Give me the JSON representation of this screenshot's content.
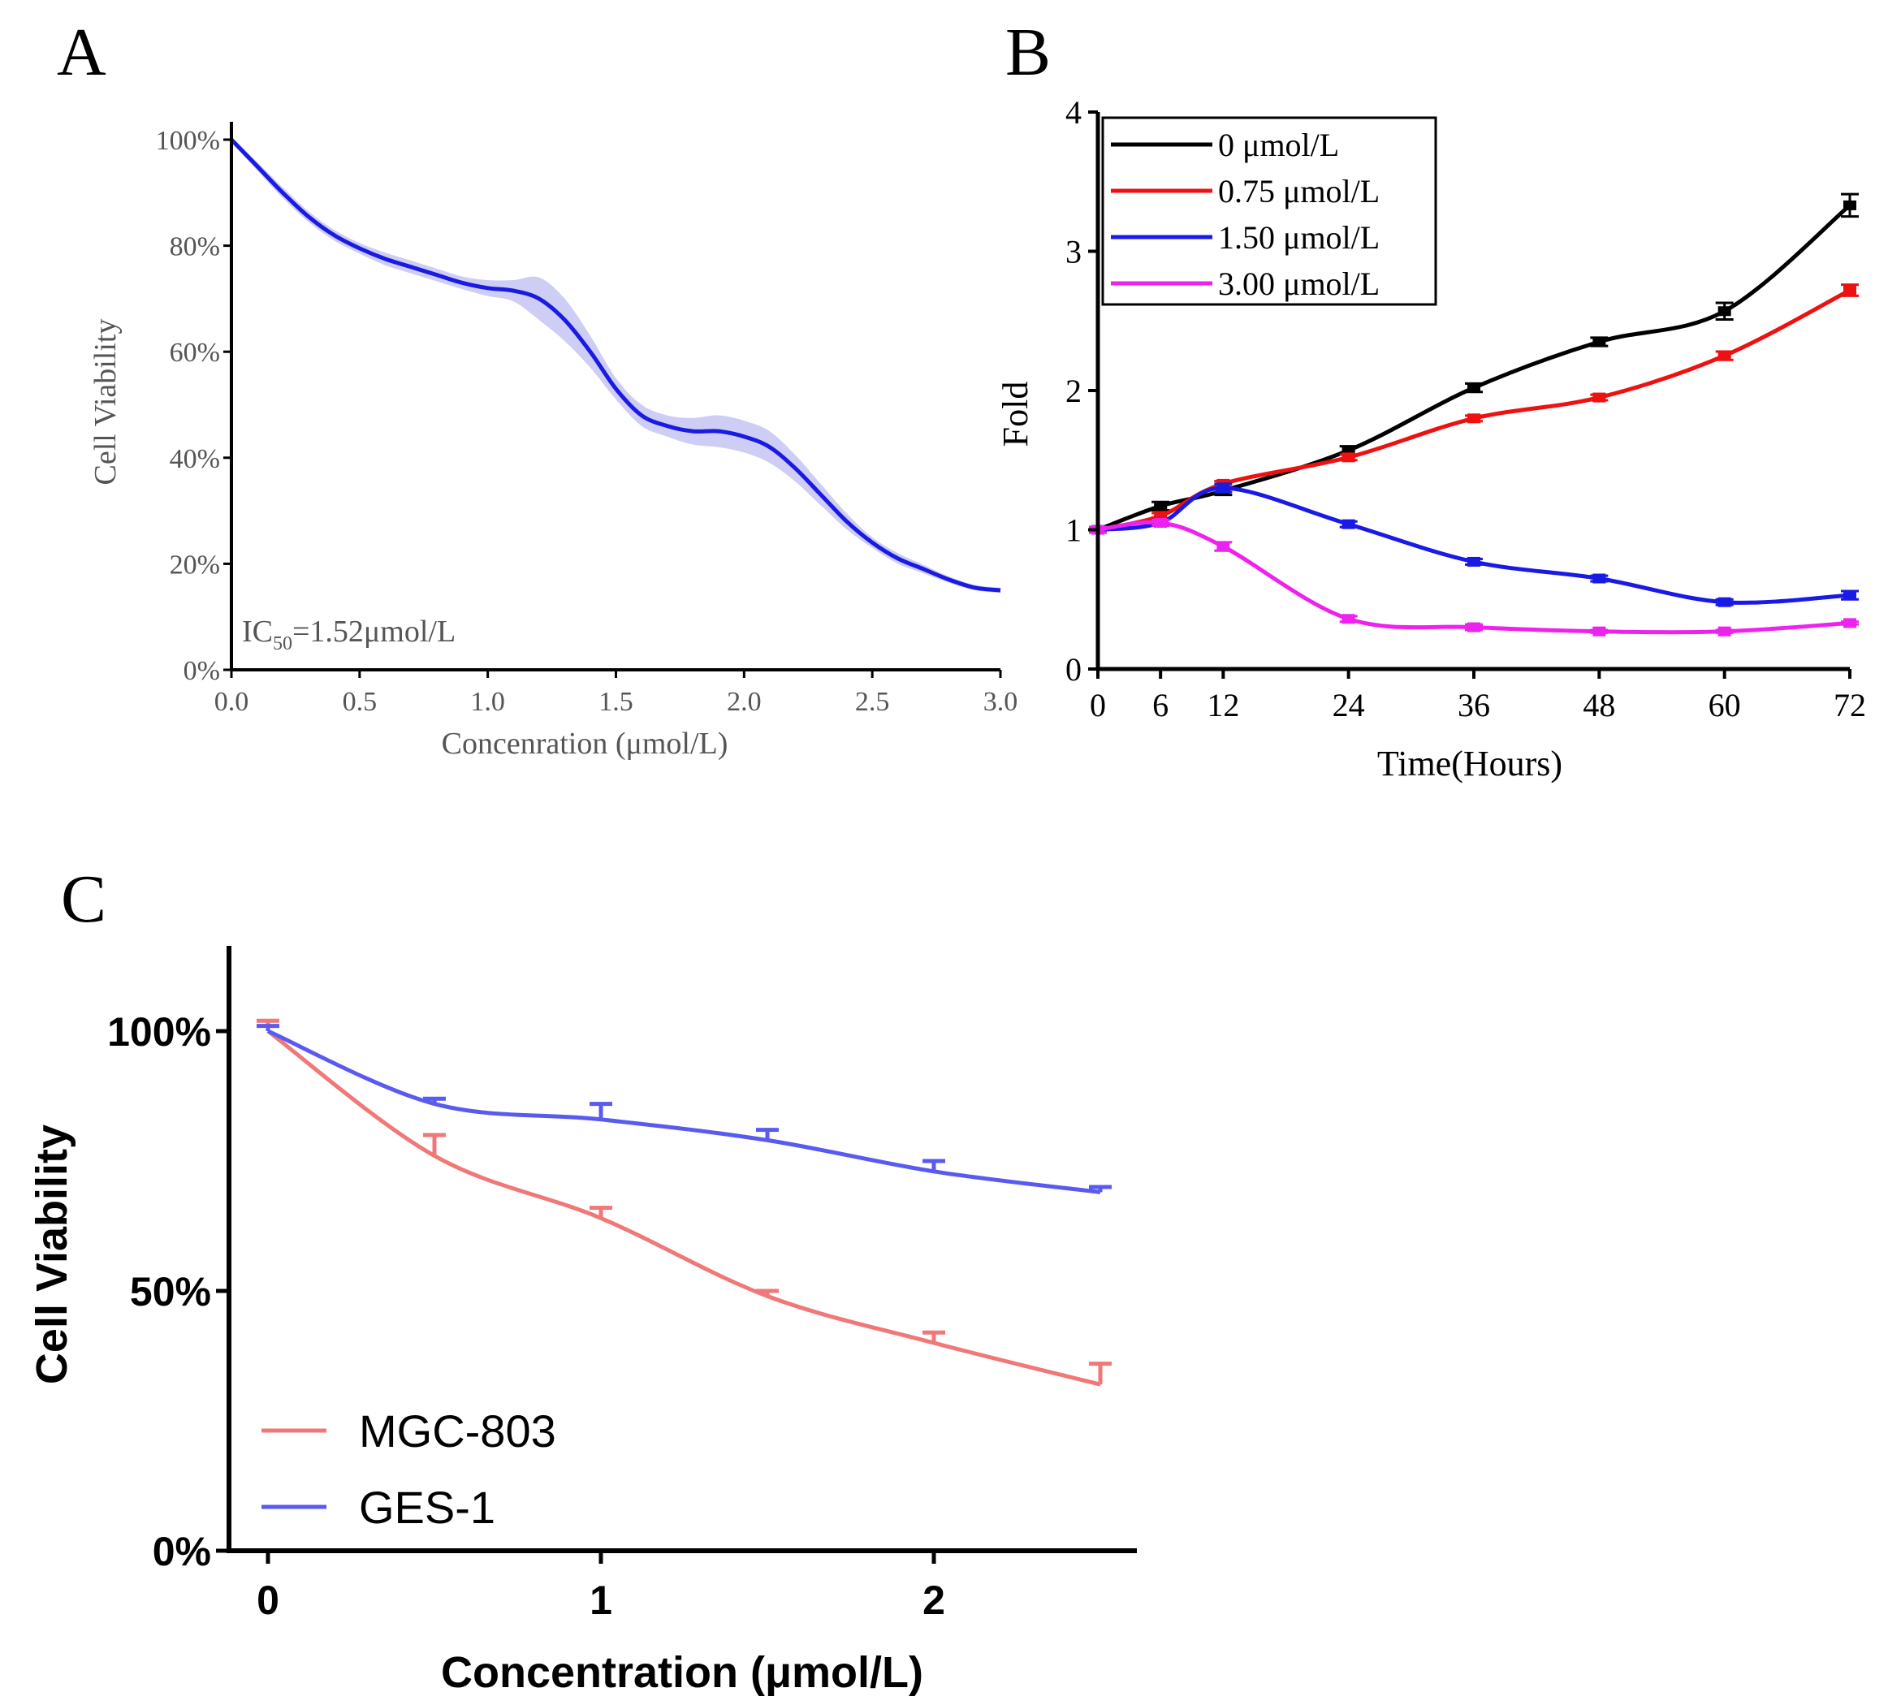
{
  "panels": {
    "a": {
      "letter": "A"
    },
    "b": {
      "letter": "B"
    },
    "c": {
      "letter": "C"
    }
  },
  "chart_data": [
    {
      "id": "A",
      "type": "line",
      "title": "",
      "xlabel": "Concenration (μmol/L)",
      "ylabel": "Cell Viability",
      "xlim": [
        0,
        3
      ],
      "ylim": [
        0,
        1.05
      ],
      "xticks": [
        0,
        0.5,
        1,
        1.5,
        2,
        2.5,
        3
      ],
      "xtick_labels": [
        "0.0",
        "0.5",
        "1.0",
        "1.5",
        "2.0",
        "2.5",
        "3.0"
      ],
      "yticks": [
        0,
        0.2,
        0.4,
        0.6,
        0.8,
        1.0
      ],
      "ytick_labels": [
        "0%",
        "20%",
        "40%",
        "60%",
        "80%",
        "100%"
      ],
      "annotation": {
        "prefix": "IC",
        "subscript": "50",
        "suffix": "=1.52μmol/L"
      },
      "colors": {
        "line": "#1a1ae0",
        "band": "#c8c8f4",
        "axis": "#000000"
      },
      "series": [
        {
          "name": "Cell viability",
          "x": [
            0,
            0.1,
            0.2,
            0.3,
            0.4,
            0.5,
            0.6,
            0.7,
            0.8,
            0.9,
            1.0,
            1.1,
            1.2,
            1.3,
            1.4,
            1.5,
            1.6,
            1.7,
            1.8,
            1.9,
            2.0,
            2.1,
            2.2,
            2.3,
            2.4,
            2.5,
            2.6,
            2.7,
            2.8,
            2.9,
            3.0
          ],
          "y": [
            1.0,
            0.95,
            0.9,
            0.855,
            0.82,
            0.795,
            0.775,
            0.76,
            0.745,
            0.73,
            0.72,
            0.715,
            0.7,
            0.66,
            0.6,
            0.53,
            0.48,
            0.46,
            0.45,
            0.45,
            0.44,
            0.42,
            0.38,
            0.33,
            0.28,
            0.24,
            0.21,
            0.19,
            0.17,
            0.155,
            0.15
          ],
          "band_half_width": [
            0.005,
            0.008,
            0.01,
            0.01,
            0.01,
            0.01,
            0.012,
            0.012,
            0.012,
            0.012,
            0.015,
            0.02,
            0.04,
            0.04,
            0.03,
            0.02,
            0.02,
            0.02,
            0.025,
            0.03,
            0.03,
            0.03,
            0.025,
            0.02,
            0.015,
            0.01,
            0.01,
            0.008,
            0.006,
            0.005,
            0.005
          ]
        }
      ]
    },
    {
      "id": "B",
      "type": "line",
      "title": "",
      "xlabel": "Time(Hours)",
      "ylabel": "Fold",
      "xlim": [
        0,
        72
      ],
      "ylim": [
        0,
        4
      ],
      "xticks": [
        0,
        6,
        12,
        24,
        36,
        48,
        60,
        72
      ],
      "yticks": [
        0,
        1,
        2,
        3,
        4
      ],
      "legend_position": "top-left",
      "series": [
        {
          "name": "0 μmol/L",
          "color": "#000000",
          "x": [
            0,
            6,
            12,
            24,
            36,
            48,
            60,
            72
          ],
          "y": [
            1.0,
            1.17,
            1.28,
            1.57,
            2.02,
            2.35,
            2.57,
            3.33
          ],
          "err": [
            0.02,
            0.03,
            0.03,
            0.03,
            0.03,
            0.03,
            0.06,
            0.08
          ]
        },
        {
          "name": "0.75 μmol/L",
          "color": "#ee1111",
          "x": [
            0,
            6,
            12,
            24,
            36,
            48,
            60,
            72
          ],
          "y": [
            1.0,
            1.1,
            1.33,
            1.52,
            1.8,
            1.95,
            2.25,
            2.72
          ],
          "err": [
            0.02,
            0.02,
            0.02,
            0.02,
            0.02,
            0.02,
            0.03,
            0.04
          ]
        },
        {
          "name": "1.50 μmol/L",
          "color": "#1a1ae6",
          "x": [
            0,
            6,
            12,
            24,
            36,
            48,
            60,
            72
          ],
          "y": [
            1.0,
            1.05,
            1.3,
            1.04,
            0.77,
            0.65,
            0.48,
            0.53
          ],
          "err": [
            0.02,
            0.02,
            0.03,
            0.02,
            0.02,
            0.02,
            0.02,
            0.03
          ]
        },
        {
          "name": "3.00 μmol/L",
          "color": "#ee22ee",
          "x": [
            0,
            6,
            12,
            24,
            36,
            48,
            60,
            72
          ],
          "y": [
            1.0,
            1.05,
            0.88,
            0.36,
            0.3,
            0.27,
            0.27,
            0.33
          ],
          "err": [
            0.02,
            0.02,
            0.03,
            0.02,
            0.02,
            0.01,
            0.01,
            0.01
          ]
        }
      ]
    },
    {
      "id": "C",
      "type": "line",
      "title": "",
      "xlabel": "Concentration (μmol/L)",
      "ylabel": "Cell Viability",
      "xlim": [
        -0.1,
        2.6
      ],
      "ylim": [
        0,
        1.16
      ],
      "xticks": [
        0,
        1,
        2
      ],
      "yticks": [
        0,
        0.5,
        1.0
      ],
      "ytick_labels": [
        "0%",
        "50%",
        "100%"
      ],
      "legend_position": "bottom-left",
      "series": [
        {
          "name": "MGC-803",
          "color": "#f07878",
          "x": [
            0,
            0.5,
            1.0,
            1.5,
            2.0,
            2.5
          ],
          "y": [
            1.0,
            0.76,
            0.64,
            0.49,
            0.4,
            0.32
          ],
          "err": [
            0.02,
            0.04,
            0.02,
            0.01,
            0.02,
            0.04
          ]
        },
        {
          "name": "GES-1",
          "color": "#5a5af0",
          "x": [
            0,
            0.5,
            1.0,
            1.5,
            2.0,
            2.5
          ],
          "y": [
            1.0,
            0.86,
            0.83,
            0.79,
            0.73,
            0.69
          ],
          "err": [
            0.01,
            0.01,
            0.03,
            0.02,
            0.02,
            0.01
          ]
        }
      ]
    }
  ]
}
